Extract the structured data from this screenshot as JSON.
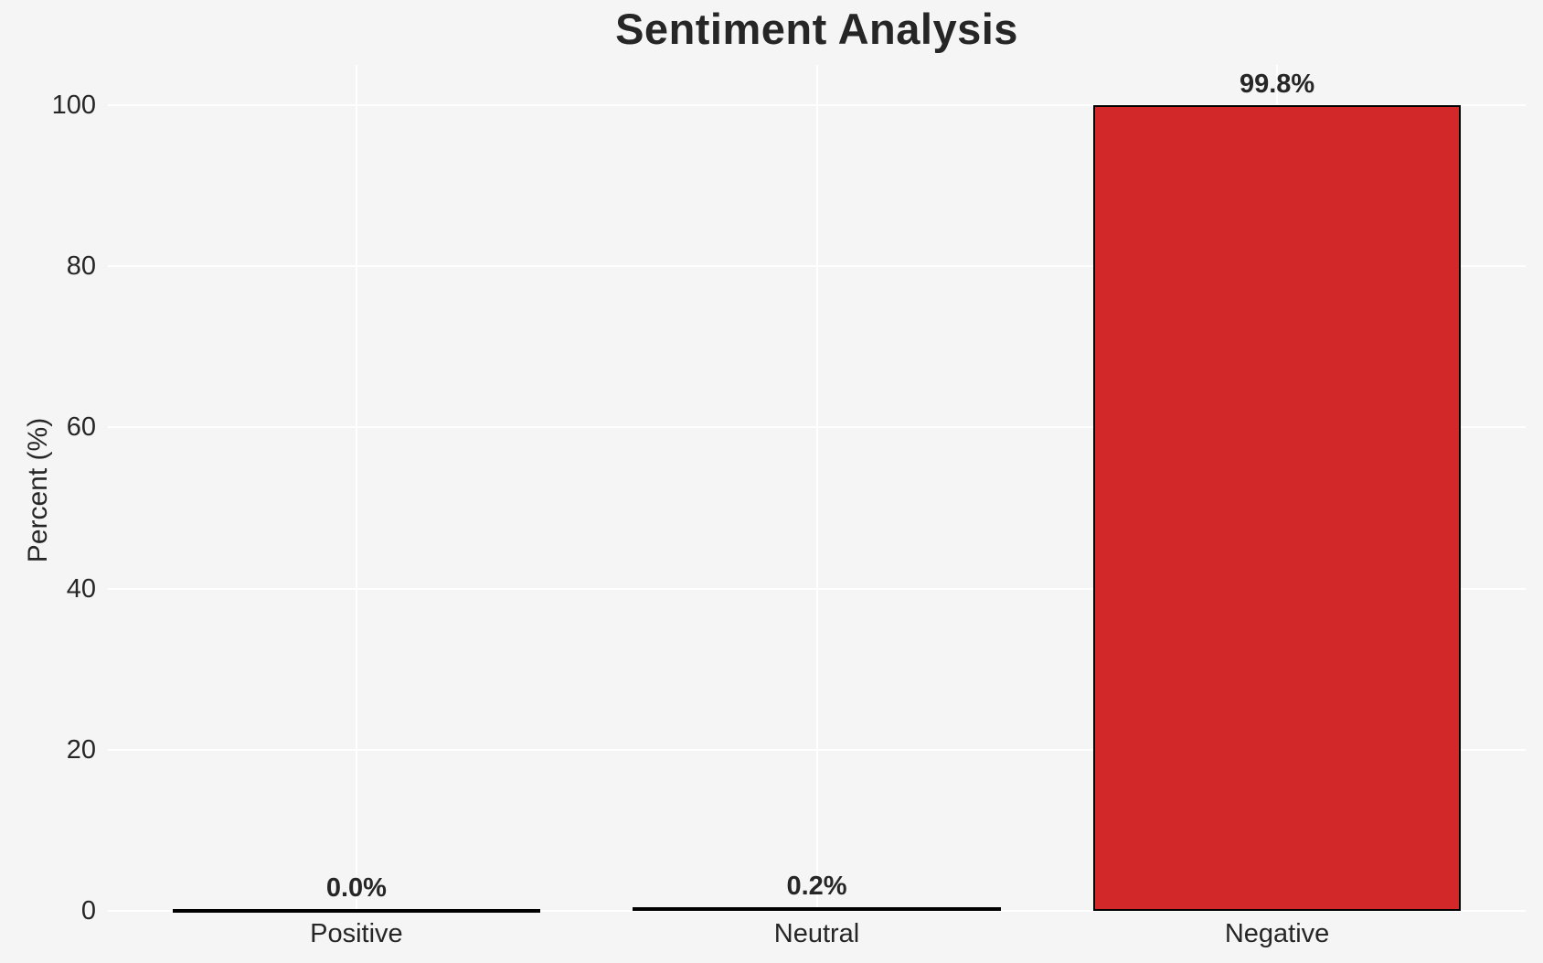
{
  "figure": {
    "background": "#f5f5f6"
  },
  "chart_data": {
    "type": "bar",
    "title": "Sentiment Analysis",
    "xlabel": "",
    "ylabel": "Percent (%)",
    "categories": [
      "Positive",
      "Neutral",
      "Negative"
    ],
    "values": [
      0.0,
      0.2,
      99.8
    ],
    "bar_labels": [
      "0.0%",
      "0.2%",
      "99.8%"
    ],
    "yticks": [
      0,
      20,
      40,
      60,
      80,
      100
    ],
    "ylim": [
      0,
      105
    ],
    "grid": true,
    "legend_position": "none",
    "colors": {
      "bar_fill": "#d3282a",
      "bar_edge": "#000000",
      "gridline": "#ffffff",
      "background": "#f5f5f6",
      "text": "#262626"
    }
  }
}
